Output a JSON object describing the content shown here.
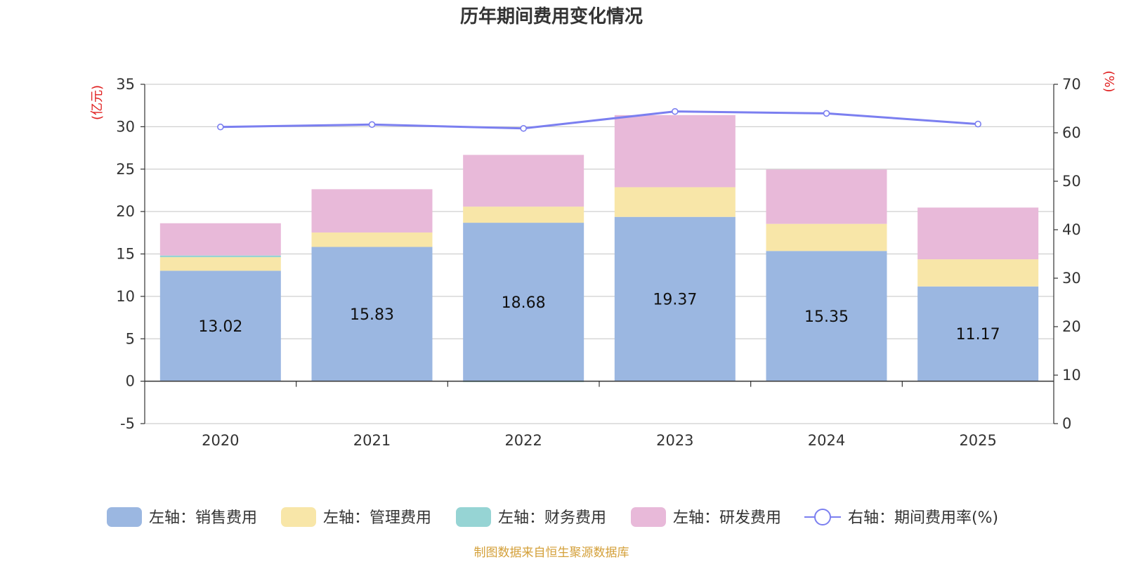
{
  "chart_data": {
    "type": "bar",
    "title": "历年期间费用变化情况",
    "categories": [
      "2020",
      "2021",
      "2022",
      "2023",
      "2024",
      "2025"
    ],
    "left_axis": {
      "unit": "(亿元)",
      "ylim": [
        -5,
        35
      ],
      "ticks": [
        "-5",
        "0",
        "5",
        "10",
        "15",
        "20",
        "25",
        "30",
        "35"
      ]
    },
    "right_axis": {
      "unit": "(%)",
      "ylim": [
        0,
        70
      ],
      "ticks": [
        "0",
        "10",
        "20",
        "30",
        "40",
        "50",
        "60",
        "70"
      ]
    },
    "series": [
      {
        "name": "左轴：销售费用",
        "axis": "left",
        "type": "bar",
        "stack": "cost",
        "color": "#9bb7e1",
        "values": [
          13.02,
          15.83,
          18.68,
          19.37,
          15.35,
          11.17
        ],
        "show_labels": true,
        "labels": [
          "13.02",
          "15.83",
          "18.68",
          "19.37",
          "15.35",
          "11.17"
        ]
      },
      {
        "name": "左轴：管理费用",
        "axis": "left",
        "type": "bar",
        "stack": "cost",
        "color": "#f8e6a8",
        "values": [
          1.6,
          1.7,
          1.9,
          3.5,
          3.2,
          3.2
        ]
      },
      {
        "name": "左轴：财务费用",
        "axis": "left",
        "type": "bar",
        "stack": "cost",
        "color": "#96d4d4",
        "values": [
          0.2,
          0.0,
          -0.1,
          0.0,
          0.0,
          0.0
        ]
      },
      {
        "name": "左轴：研发费用",
        "axis": "left",
        "type": "bar",
        "stack": "cost",
        "color": "#e8b9d9",
        "values": [
          3.8,
          5.1,
          6.1,
          8.5,
          6.4,
          6.1
        ]
      },
      {
        "name": "右轴：期间费用率(%)",
        "axis": "right",
        "type": "line",
        "color": "#7b7ff0",
        "values": [
          61.2,
          61.7,
          60.9,
          64.4,
          64.0,
          61.8
        ]
      }
    ],
    "legend_position": "bottom",
    "source": "制图数据来自恒生聚源数据库"
  }
}
